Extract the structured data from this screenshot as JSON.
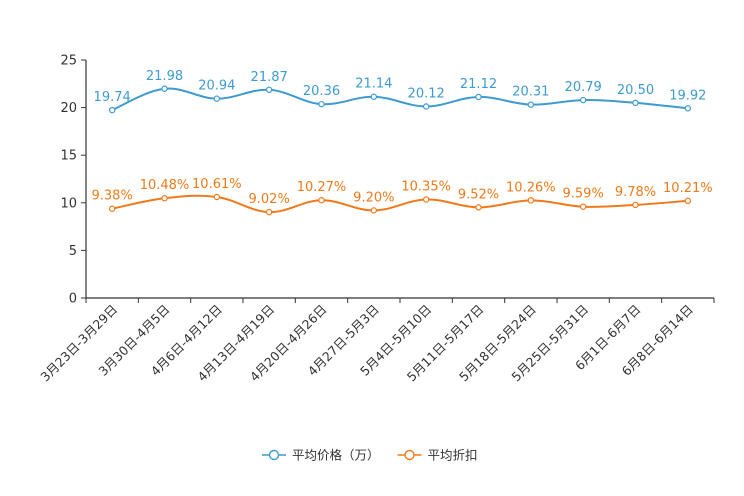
{
  "chart_data": {
    "type": "line",
    "title": "",
    "xlabel": "",
    "ylabel": "",
    "ylim": [
      0,
      25
    ],
    "yticks": [
      0,
      5,
      10,
      15,
      20,
      25
    ],
    "grid": false,
    "legend_position": "bottom-center",
    "categories": [
      "3月23日-3月29日",
      "3月30日-4月5日",
      "4月6日-4月12日",
      "4月13日-4月19日",
      "4月20日-4月26日",
      "4月27日-5月3日",
      "5月4日-5月10日",
      "5月11日-5月17日",
      "5月18日-5月24日",
      "5月25日-5月31日",
      "6月1日-6月7日",
      "6月8日-6月14日"
    ],
    "series": [
      {
        "name": "平均价格（万）",
        "color": "#3d9bd0",
        "values": [
          19.74,
          21.98,
          20.94,
          21.87,
          20.36,
          21.14,
          20.12,
          21.12,
          20.31,
          20.79,
          20.5,
          19.92
        ],
        "labels": [
          "19.74",
          "21.98",
          "20.94",
          "21.87",
          "20.36",
          "21.14",
          "20.12",
          "21.12",
          "20.31",
          "20.79",
          "20.50",
          "19.92"
        ]
      },
      {
        "name": "平均折扣",
        "color": "#f07a1a",
        "values": [
          9.38,
          10.48,
          10.61,
          9.02,
          10.27,
          9.2,
          10.35,
          9.52,
          10.26,
          9.59,
          9.78,
          10.21
        ],
        "labels": [
          "9.38%",
          "10.48%",
          "10.61%",
          "9.02%",
          "10.27%",
          "9.20%",
          "10.35%",
          "9.52%",
          "10.26%",
          "9.59%",
          "9.78%",
          "10.21%"
        ]
      }
    ]
  }
}
